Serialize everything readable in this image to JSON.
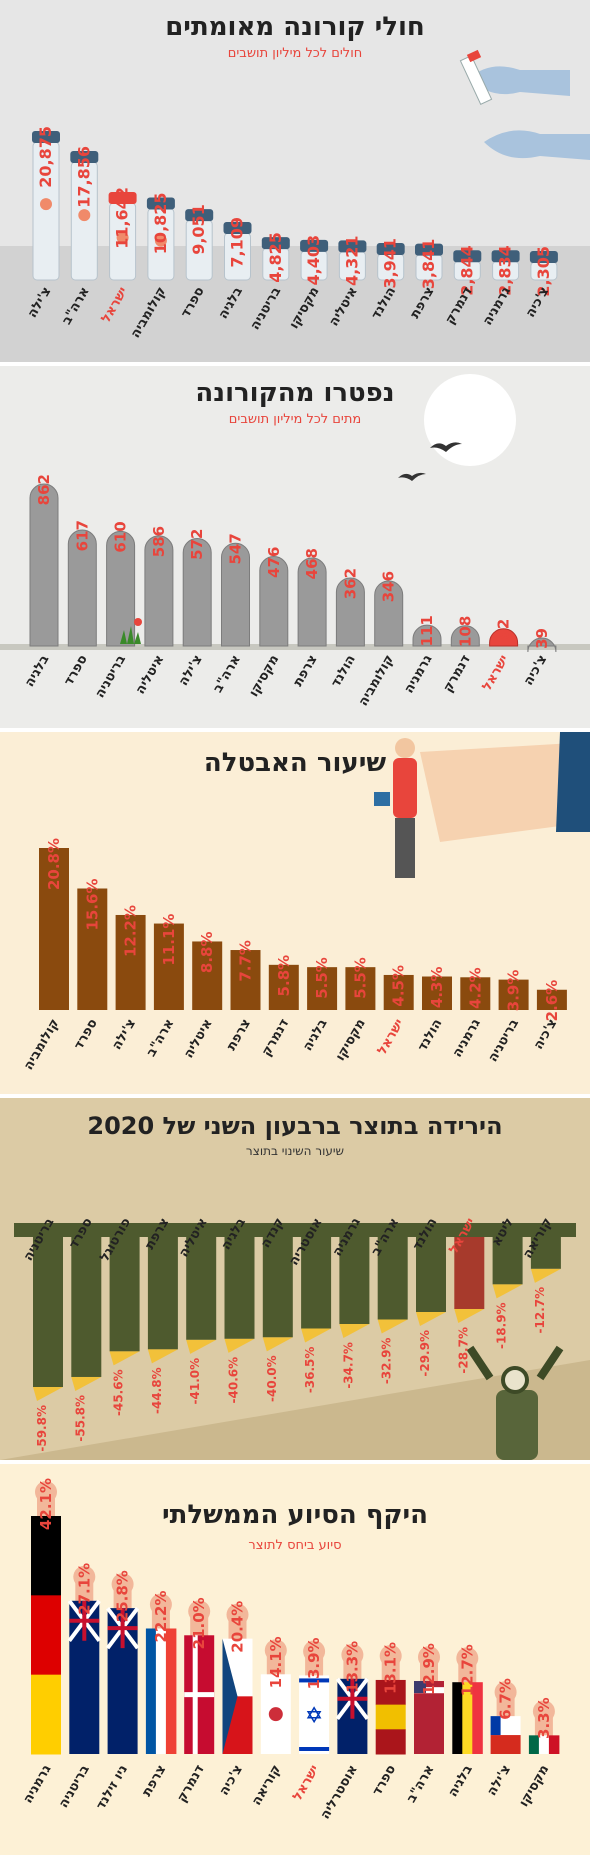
{
  "colors": {
    "red": "#e8453c",
    "dark": "#3a3a3a",
    "brown": "#8a4a0e",
    "olive": "#4e5a2e",
    "yellow": "#f2c13a"
  },
  "chart_data": [
    {
      "type": "bar",
      "title": "חולי קורונה מאומתים",
      "subtitle": "חולים לכל מיליון תושבים",
      "categories": [
        "צ'ילה",
        "ארה\"ב",
        "ישראל",
        "קולומביה",
        "ספרד",
        "בלגיה",
        "בריטניה",
        "מקסיקו",
        "איטליה",
        "הולנד",
        "צרפת",
        "דנמרק",
        "גרמניה",
        "צ'כיה"
      ],
      "values": [
        20875,
        17856,
        11642,
        10825,
        9051,
        7109,
        4825,
        4403,
        4321,
        3941,
        3841,
        2844,
        2834,
        2305
      ],
      "value_labels": [
        "20,875",
        "17,856",
        "11,642",
        "10,825",
        "9,051",
        "7,109",
        "4,825",
        "4,403",
        "4,321",
        "3,941",
        "3,841",
        "2,844",
        "2,834",
        "2,305"
      ],
      "highlight": "ישראל"
    },
    {
      "type": "bar",
      "title": "נפטרו מהקורונה",
      "subtitle": "מתים לכל מיליון תושבים",
      "categories": [
        "בלגיה",
        "ספרד",
        "בריטניה",
        "איטליה",
        "צ'ילה",
        "ארה\"ב",
        "מקסיקו",
        "צרפת",
        "הולנד",
        "קולומביה",
        "גרמניה",
        "דנמרק",
        "ישראל",
        "צ'כיה"
      ],
      "values": [
        862,
        617,
        610,
        586,
        572,
        547,
        476,
        468,
        362,
        346,
        111,
        108,
        92,
        39
      ],
      "value_labels": [
        "862",
        "617",
        "610",
        "586",
        "572",
        "547",
        "476",
        "468",
        "362",
        "346",
        "111",
        "108",
        "92",
        "39"
      ],
      "highlight": "ישראל"
    },
    {
      "type": "bar",
      "title": "שיעור האבטלה",
      "categories": [
        "קולומביה",
        "ספרד",
        "צ'ילה",
        "ארה\"ב",
        "איטליה",
        "צרפת",
        "דנמרק",
        "בלגיה",
        "מקסיקו",
        "ישראל",
        "הולנד",
        "גרמניה",
        "בריטניה",
        "צ'כיה"
      ],
      "values": [
        20.8,
        15.6,
        12.2,
        11.1,
        8.8,
        7.7,
        5.8,
        5.5,
        5.5,
        4.5,
        4.3,
        4.2,
        3.9,
        2.6
      ],
      "value_labels": [
        "20.8%",
        "15.6%",
        "12.2%",
        "11.1%",
        "8.8%",
        "7.7%",
        "5.8%",
        "5.5%",
        "5.5%",
        "4.5%",
        "4.3%",
        "4.2%",
        "3.9%",
        "2.6%"
      ],
      "highlight": "ישראל"
    },
    {
      "type": "bar",
      "title": "הירידה בתוצר ברבעון השני של 2020",
      "subtitle": "שיעור השינוי בתוצר",
      "categories": [
        "בריטניה",
        "ספרד",
        "פורטוגל",
        "צרפת",
        "איטליה",
        "בלגיה",
        "קנדה",
        "אוסטריה",
        "גרמניה",
        "ארה\"ב",
        "הולנד",
        "ישראל",
        "ליטא",
        "קוריאה"
      ],
      "values": [
        -59.8,
        -55.8,
        -45.6,
        -44.8,
        -41.0,
        -40.6,
        -40.0,
        -36.5,
        -34.7,
        -32.9,
        -29.9,
        -28.7,
        -18.9,
        -12.7
      ],
      "value_labels": [
        "-59.8%",
        "-55.8%",
        "-45.6%",
        "-44.8%",
        "-41.0%",
        "-40.6%",
        "-40.0%",
        "-36.5%",
        "-34.7%",
        "-32.9%",
        "-29.9%",
        "-28.7%",
        "-18.9%",
        "-12.7%"
      ],
      "highlight": "ישראל"
    },
    {
      "type": "bar",
      "title": "היקף הסיוע הממשלתי",
      "subtitle": "סיוע ביחס לתוצר",
      "categories": [
        "גרמניה",
        "בריטניה",
        "ניו זילנד",
        "צרפת",
        "דנמרק",
        "צ'כיה",
        "קוריאה",
        "ישראל",
        "אוסטרליה",
        "ספרד",
        "ארה\"ב",
        "בלגיה",
        "צ'ילה",
        "מקסיקו"
      ],
      "values": [
        42.1,
        27.1,
        25.8,
        22.2,
        21.0,
        20.4,
        14.1,
        13.9,
        13.3,
        13.1,
        12.9,
        12.7,
        6.7,
        3.3
      ],
      "value_labels": [
        "42.1%",
        "27.1%",
        "25.8%",
        "22.2%",
        "21.0%",
        "20.4%",
        "14.1%",
        "13.9%",
        "13.3%",
        "13.1%",
        "12.9%",
        "12.7%",
        "6.7%",
        "3.3%"
      ],
      "highlight": "ישראל"
    }
  ]
}
